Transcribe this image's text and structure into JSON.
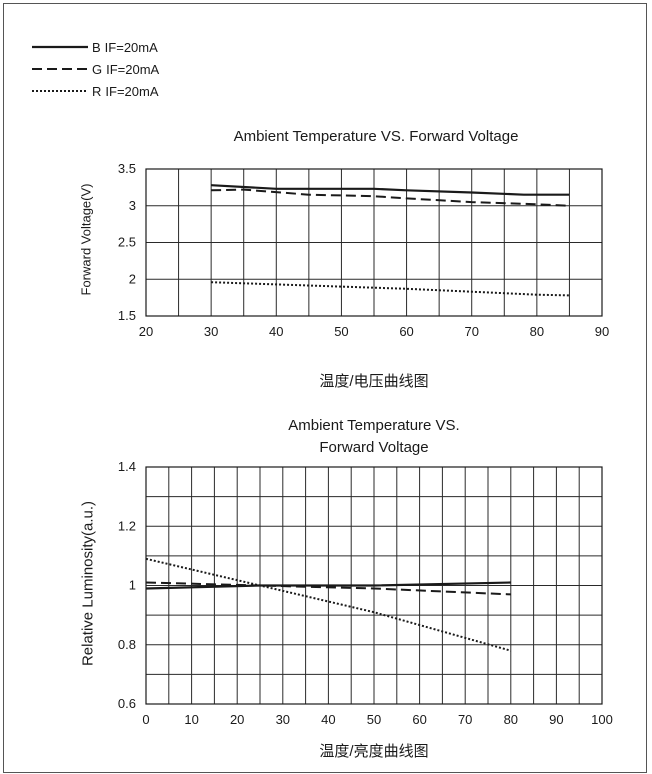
{
  "legend": [
    {
      "name": "B",
      "label": "IF=20mA",
      "style": "solid"
    },
    {
      "name": "G",
      "label": "IF=20mA",
      "style": "dashed"
    },
    {
      "name": "R",
      "label": "IF=20mA",
      "style": "dotted"
    }
  ],
  "chart_data": [
    {
      "type": "line",
      "title": "Ambient Temperature VS. Forward Voltage",
      "xlabel": "温度/电压曲线图",
      "ylabel": "Forward Voltage(V)",
      "xlim": [
        20,
        90
      ],
      "ylim": [
        1.5,
        3.5
      ],
      "xticks": [
        20,
        30,
        40,
        50,
        60,
        70,
        80,
        90
      ],
      "yticks": [
        1.5,
        2,
        2.5,
        3,
        3.5
      ],
      "ytick_labels": [
        "1.5",
        "2",
        "2.5",
        "3",
        "3.5"
      ],
      "x_minor_step": 5,
      "y_grid_step": 0.5,
      "grid": true,
      "series": [
        {
          "name": "B",
          "style": "solid",
          "x": [
            30,
            40,
            50,
            55,
            60,
            70,
            78,
            85
          ],
          "y": [
            3.28,
            3.23,
            3.23,
            3.23,
            3.21,
            3.18,
            3.15,
            3.15
          ]
        },
        {
          "name": "G",
          "style": "dashed",
          "x": [
            30,
            35,
            45,
            55,
            60,
            70,
            80,
            85
          ],
          "y": [
            3.21,
            3.22,
            3.15,
            3.13,
            3.1,
            3.05,
            3.02,
            3.0
          ]
        },
        {
          "name": "R",
          "style": "dotted",
          "x": [
            30,
            40,
            50,
            60,
            70,
            80,
            85
          ],
          "y": [
            1.96,
            1.93,
            1.9,
            1.87,
            1.83,
            1.79,
            1.78
          ]
        }
      ]
    },
    {
      "type": "line",
      "title": "Ambient Temperature VS.\nForward Voltage",
      "xlabel": "温度/亮度曲线图",
      "ylabel": "Relative Luminosity(a.u.)",
      "xlim": [
        0,
        100
      ],
      "ylim": [
        0.6,
        1.4
      ],
      "xticks": [
        0,
        10,
        20,
        30,
        40,
        50,
        60,
        70,
        80,
        90,
        100
      ],
      "yticks": [
        0.6,
        0.8,
        1,
        1.2,
        1.4
      ],
      "ytick_labels": [
        "0.6",
        "0.8",
        "1",
        "1.2",
        "1.4"
      ],
      "x_minor_step": 5,
      "y_grid_step": 0.1,
      "grid": true,
      "series": [
        {
          "name": "B",
          "style": "solid",
          "x": [
            0,
            25,
            50,
            80
          ],
          "y": [
            0.99,
            1.0,
            1.0,
            1.01
          ]
        },
        {
          "name": "G",
          "style": "dashed",
          "x": [
            0,
            25,
            50,
            80
          ],
          "y": [
            1.01,
            1.0,
            0.99,
            0.97
          ]
        },
        {
          "name": "R",
          "style": "dotted",
          "x": [
            0,
            25,
            50,
            80
          ],
          "y": [
            1.09,
            1.0,
            0.91,
            0.78
          ]
        }
      ]
    }
  ]
}
